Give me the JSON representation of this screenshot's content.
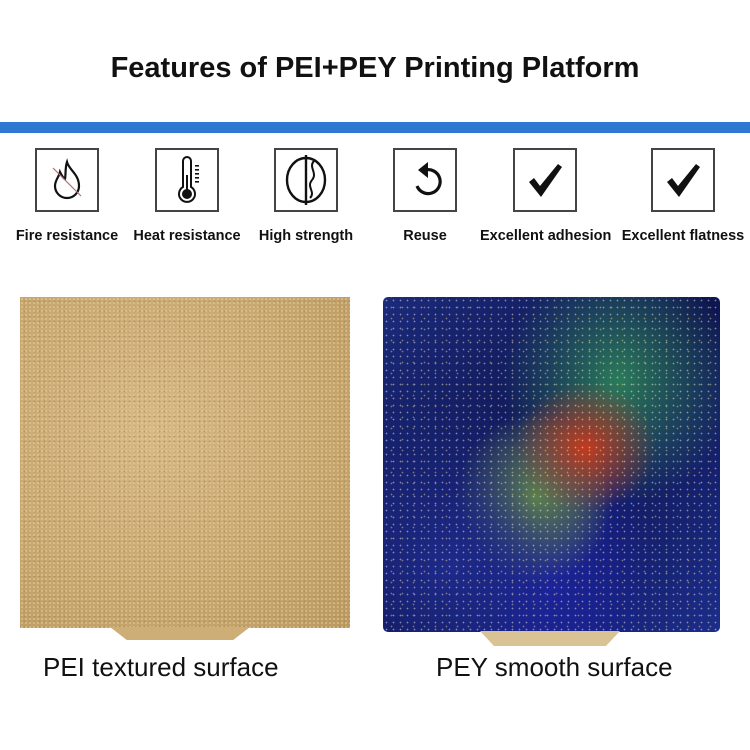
{
  "title": "Features of PEI+PEY Printing Platform",
  "accent_color": "#2c78d2",
  "features": [
    {
      "label": "Fire resistance",
      "icon": "fire-resistant-icon"
    },
    {
      "label": "Heat resistance",
      "icon": "thermometer-icon"
    },
    {
      "label": "High strength",
      "icon": "strength-icon"
    },
    {
      "label": "Reuse",
      "icon": "reuse-arrow-icon"
    },
    {
      "label": "Excellent adhesion",
      "icon": "checkmark-icon"
    },
    {
      "label": "Excellent flatness",
      "icon": "checkmark-icon"
    }
  ],
  "products": [
    {
      "label": "PEI textured surface"
    },
    {
      "label": "PEY smooth surface"
    }
  ]
}
